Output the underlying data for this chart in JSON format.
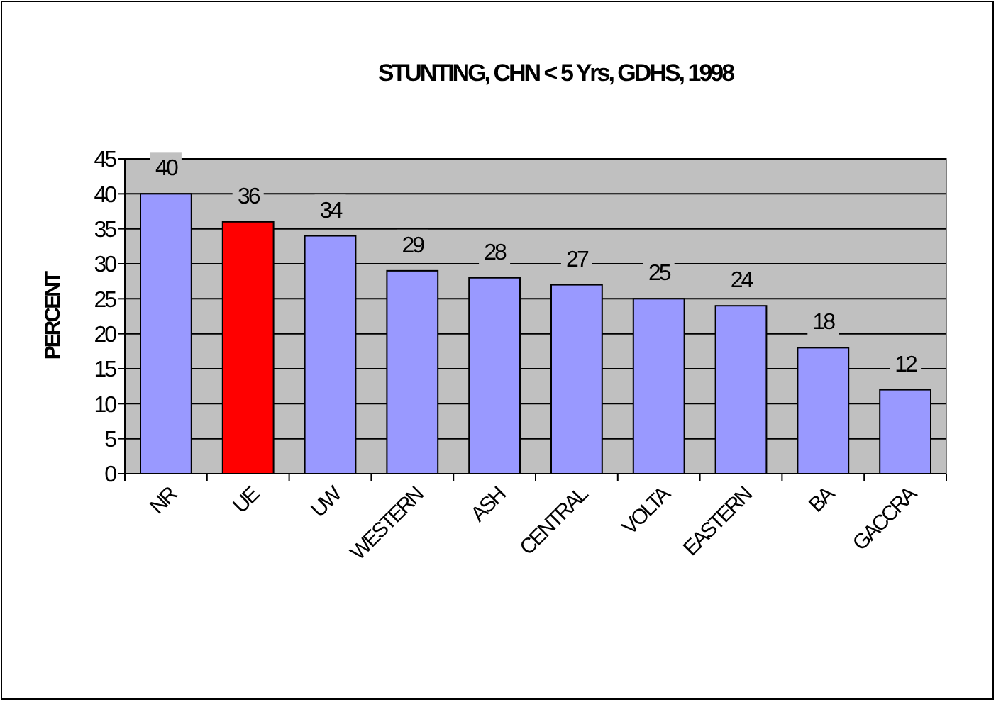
{
  "chart_data": {
    "type": "bar",
    "title": "STUNTING, CHN < 5 Yrs, GDHS, 1998",
    "ylabel": "PERCENT",
    "categories": [
      "NR",
      "UE",
      "UW",
      "WESTERN",
      "ASH",
      "CENTRAL",
      "VOLTA",
      "EASTERN",
      "BA",
      "GACCRA"
    ],
    "values": [
      40,
      36,
      34,
      29,
      28,
      27,
      25,
      24,
      18,
      12
    ],
    "colors": [
      "#9999ff",
      "#ff0000",
      "#9999ff",
      "#9999ff",
      "#9999ff",
      "#9999ff",
      "#9999ff",
      "#9999ff",
      "#9999ff",
      "#9999ff"
    ],
    "ylim": [
      0,
      45
    ],
    "yticks": [
      0,
      5,
      10,
      15,
      20,
      25,
      30,
      35,
      40,
      45
    ],
    "grid": "y",
    "data_labels": true
  }
}
